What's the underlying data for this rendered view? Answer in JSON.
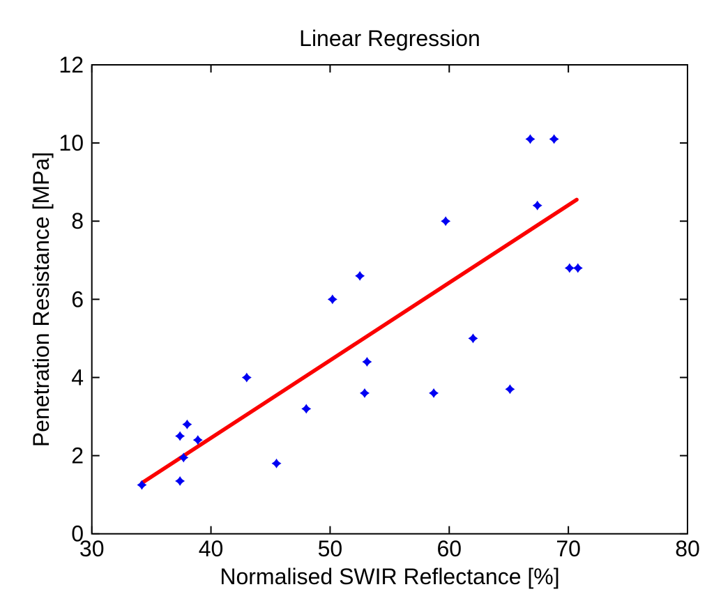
{
  "figure": {
    "title": "Linear Regression"
  },
  "chart_data": {
    "type": "scatter",
    "title": "Linear Regression",
    "xlabel": "Normalised SWIR Reflectance [%]",
    "ylabel": "Penetration Resistance [MPa]",
    "xlim": [
      30,
      80
    ],
    "ylim": [
      0,
      12
    ],
    "x_ticks": [
      30,
      40,
      50,
      60,
      70,
      80
    ],
    "y_ticks": [
      0,
      2,
      4,
      6,
      8,
      10,
      12
    ],
    "grid": false,
    "legend": null,
    "marker_style": "four-point-star",
    "marker_color": "#0000f2",
    "line_color": "#fb0000",
    "axis_color": "#000000",
    "points": [
      {
        "x": 34.2,
        "y": 1.25
      },
      {
        "x": 37.4,
        "y": 2.5
      },
      {
        "x": 37.4,
        "y": 1.35
      },
      {
        "x": 37.7,
        "y": 1.95
      },
      {
        "x": 38.0,
        "y": 2.8
      },
      {
        "x": 38.9,
        "y": 2.4
      },
      {
        "x": 43.0,
        "y": 4.0
      },
      {
        "x": 45.5,
        "y": 1.8
      },
      {
        "x": 48.0,
        "y": 3.2
      },
      {
        "x": 50.2,
        "y": 6.0
      },
      {
        "x": 52.5,
        "y": 6.6
      },
      {
        "x": 52.9,
        "y": 3.6
      },
      {
        "x": 53.1,
        "y": 4.4
      },
      {
        "x": 58.7,
        "y": 3.6
      },
      {
        "x": 59.7,
        "y": 8.0
      },
      {
        "x": 62.0,
        "y": 5.0
      },
      {
        "x": 65.1,
        "y": 3.7
      },
      {
        "x": 66.8,
        "y": 10.1
      },
      {
        "x": 67.4,
        "y": 8.4
      },
      {
        "x": 68.8,
        "y": 10.1
      },
      {
        "x": 70.1,
        "y": 6.8
      },
      {
        "x": 70.8,
        "y": 6.8
      }
    ],
    "regression_line": {
      "x1": 34.2,
      "y1": 1.3,
      "x2": 70.7,
      "y2": 8.55
    }
  }
}
